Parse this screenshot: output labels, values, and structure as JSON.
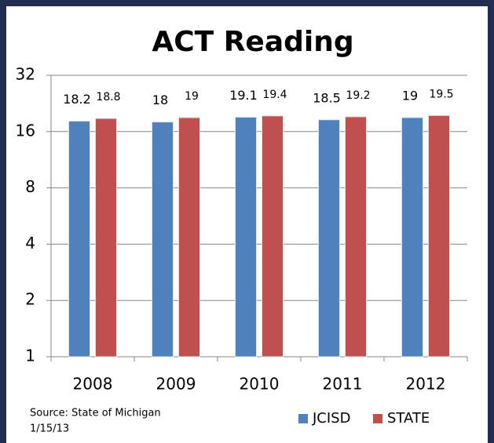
{
  "chart_data": {
    "type": "bar",
    "title": "ACT Reading",
    "categories": [
      "2008",
      "2009",
      "2010",
      "2011",
      "2012"
    ],
    "series": [
      {
        "name": "JCISD",
        "color": "#4f81bd",
        "values": [
          18.2,
          18,
          19.1,
          18.5,
          19
        ]
      },
      {
        "name": "STATE",
        "color": "#c0504d",
        "values": [
          18.8,
          19,
          19.4,
          19.2,
          19.5
        ]
      }
    ],
    "ylim": [
      1,
      32
    ],
    "yticks": [
      1,
      2,
      4,
      8,
      16,
      32
    ],
    "log_scale": true,
    "log_base": 2,
    "grid": true,
    "legend": "bottom-right",
    "source": [
      "Source:  State of Michigan",
      "1/15/13"
    ]
  }
}
